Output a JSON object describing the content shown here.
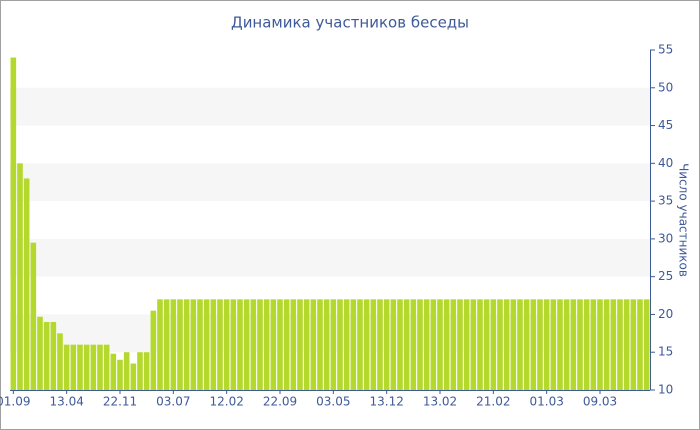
{
  "chart_data": {
    "type": "bar",
    "title": "Динамика участников беседы",
    "y_axis_label": "Число участников",
    "categories": [
      "01.09",
      null,
      null,
      null,
      null,
      null,
      null,
      null,
      "13.04",
      null,
      null,
      null,
      null,
      null,
      null,
      null,
      "22.11",
      null,
      null,
      null,
      null,
      null,
      null,
      null,
      "03.07",
      null,
      null,
      null,
      null,
      null,
      null,
      null,
      "12.02",
      null,
      null,
      null,
      null,
      null,
      null,
      null,
      "22.09",
      null,
      null,
      null,
      null,
      null,
      null,
      null,
      "03.05",
      null,
      null,
      null,
      null,
      null,
      null,
      null,
      "13.12",
      null,
      null,
      null,
      null,
      null,
      null,
      null,
      "13.02",
      null,
      null,
      null,
      null,
      null,
      null,
      null,
      "21.02",
      null,
      null,
      null,
      null,
      null,
      null,
      null,
      "01.03",
      null,
      null,
      null,
      null,
      null,
      null,
      null,
      "09.03",
      null,
      null,
      null,
      null,
      null,
      null,
      null
    ],
    "values": [
      54,
      40,
      38,
      29.5,
      19.7,
      19,
      19,
      17.5,
      16,
      16,
      16,
      16,
      16,
      16,
      16,
      14.8,
      14,
      15,
      13.5,
      15,
      15,
      20.5,
      22,
      22,
      22,
      22,
      22,
      22,
      22,
      22,
      22,
      22,
      22,
      22,
      22,
      22,
      22,
      22,
      22,
      22,
      22,
      22,
      22,
      22,
      22,
      22,
      22,
      22,
      22,
      22,
      22,
      22,
      22,
      22,
      22,
      22,
      22,
      22,
      22,
      22,
      22,
      22,
      22,
      22,
      22,
      22,
      22,
      22,
      22,
      22,
      22,
      22,
      22,
      22,
      22,
      22,
      22,
      22,
      22,
      22,
      22,
      22,
      22,
      22,
      22,
      22,
      22,
      22,
      22,
      22,
      22,
      22,
      22,
      22,
      22,
      22
    ],
    "color": "#b4d92c",
    "ylim": [
      10,
      55
    ],
    "yticks": [
      10,
      15,
      20,
      25,
      30,
      35,
      40,
      45,
      50,
      55
    ],
    "grid": true,
    "y_axis_side": "right"
  }
}
